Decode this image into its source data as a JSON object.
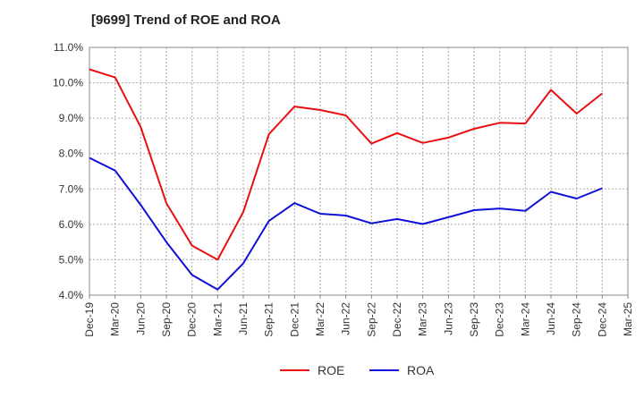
{
  "chart_data": {
    "type": "line",
    "title": "[9699]  Trend of ROE and ROA",
    "xlabel": "",
    "ylabel": "",
    "categories": [
      "Dec-19",
      "Mar-20",
      "Jun-20",
      "Sep-20",
      "Dec-20",
      "Mar-21",
      "Jun-21",
      "Sep-21",
      "Dec-21",
      "Mar-22",
      "Jun-22",
      "Sep-22",
      "Dec-22",
      "Mar-23",
      "Jun-23",
      "Sep-23",
      "Dec-23",
      "Mar-24",
      "Jun-24",
      "Sep-24",
      "Dec-24",
      "Mar-25"
    ],
    "y_tick_labels": [
      "4.0%",
      "5.0%",
      "6.0%",
      "7.0%",
      "8.0%",
      "9.0%",
      "10.0%",
      "11.0%"
    ],
    "ylim": [
      4.0,
      11.0
    ],
    "grid": true,
    "legend_position": "bottom-center",
    "series": [
      {
        "name": "ROE",
        "color": "#e81010",
        "values": [
          10.38,
          10.15,
          8.75,
          6.6,
          5.4,
          5.0,
          6.35,
          8.55,
          9.33,
          9.23,
          9.08,
          8.28,
          8.58,
          8.3,
          8.45,
          8.7,
          8.87,
          8.85,
          9.8,
          9.13,
          9.7,
          null
        ]
      },
      {
        "name": "ROA",
        "color": "#1010d8",
        "values": [
          7.88,
          7.52,
          6.55,
          5.5,
          4.57,
          4.16,
          4.9,
          6.1,
          6.6,
          6.3,
          6.25,
          6.03,
          6.15,
          6.01,
          6.2,
          6.4,
          6.45,
          6.38,
          6.92,
          6.73,
          7.02,
          null
        ]
      }
    ]
  }
}
